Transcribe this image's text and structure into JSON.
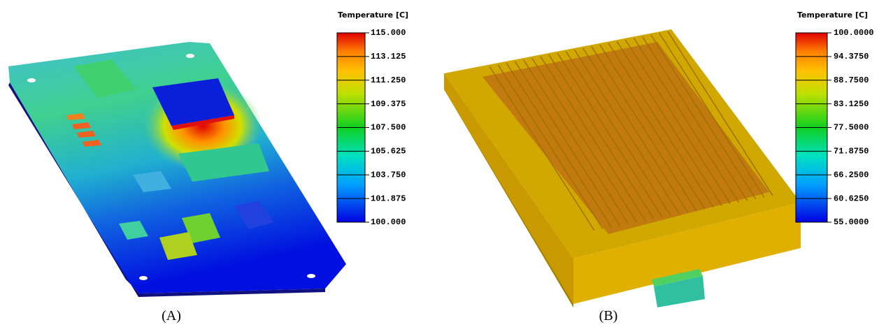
{
  "panels": [
    {
      "label": "(A)",
      "legend_title": "Temperature [C]",
      "ticks": [
        "115.000",
        "113.125",
        "111.250",
        "109.375",
        "107.500",
        "105.625",
        "103.750",
        "101.875",
        "100.000"
      ]
    },
    {
      "label": "(B)",
      "legend_title": "Temperature [C]",
      "ticks": [
        "100.0000",
        "94.3750",
        "88.7500",
        "83.1250",
        "77.5000",
        "71.8750",
        "66.2500",
        "60.6250",
        "55.0000"
      ]
    }
  ]
}
